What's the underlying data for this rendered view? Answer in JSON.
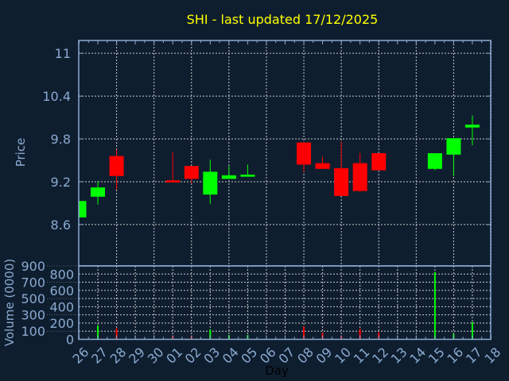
{
  "chart_data": {
    "type": "candlestick",
    "title": "SHI - last updated 17/12/2025",
    "xlabel": "Day",
    "ylabel": "Price",
    "volume_ylabel": "Volume (0000)",
    "x_tick_labels": [
      "26",
      "27",
      "28",
      "29",
      "30",
      "01",
      "02",
      "03",
      "04",
      "05",
      "06",
      "07",
      "08",
      "09",
      "10",
      "11",
      "12",
      "13",
      "14",
      "15",
      "16",
      "17",
      "18"
    ],
    "y_ticks": [
      8.6,
      9.2,
      9.8,
      10.4,
      11
    ],
    "y_tick_labels": [
      "8.6",
      "9.2",
      "9.8",
      "10.4",
      "11"
    ],
    "volume_ticks": [
      0,
      100,
      200,
      300,
      400,
      500,
      600,
      700,
      800,
      900
    ],
    "volume_tick_labels": [
      "0",
      "100",
      "200",
      "300",
      "400",
      "500",
      "600",
      "700",
      "800",
      "900"
    ],
    "ylim": [
      8.02,
      11.18
    ],
    "volume_ylim": [
      0,
      900
    ],
    "grid": true,
    "colors": {
      "up": "#00ff00",
      "down": "#ff0000",
      "background": "#0f1e2f",
      "axis": "#8aaad0",
      "title": "#ffff00",
      "grid": "#c8c8c8"
    },
    "candles": [
      {
        "day": "26",
        "open": 8.7,
        "high": 8.93,
        "low": 8.7,
        "close": 8.93,
        "volume": 0
      },
      {
        "day": "27",
        "open": 8.99,
        "high": 9.21,
        "low": 8.88,
        "close": 9.12,
        "volume": 169
      },
      {
        "day": "28",
        "open": 9.56,
        "high": 9.65,
        "low": 9.09,
        "close": 9.28,
        "volume": 136
      },
      {
        "day": "01",
        "open": 9.22,
        "high": 9.61,
        "low": 9.19,
        "close": 9.19,
        "volume": 45
      },
      {
        "day": "02",
        "open": 9.42,
        "high": 9.42,
        "low": 9.18,
        "close": 9.24,
        "volume": 39
      },
      {
        "day": "03",
        "open": 9.02,
        "high": 9.51,
        "low": 8.89,
        "close": 9.34,
        "volume": 120
      },
      {
        "day": "04",
        "open": 9.24,
        "high": 9.42,
        "low": 9.24,
        "close": 9.29,
        "volume": 52
      },
      {
        "day": "05",
        "open": 9.27,
        "high": 9.44,
        "low": 9.27,
        "close": 9.3,
        "volume": 52
      },
      {
        "day": "08",
        "open": 9.75,
        "high": 9.75,
        "low": 9.34,
        "close": 9.44,
        "volume": 156
      },
      {
        "day": "09",
        "open": 9.46,
        "high": 9.55,
        "low": 9.38,
        "close": 9.38,
        "volume": 78
      },
      {
        "day": "10",
        "open": 9.39,
        "high": 9.76,
        "low": 9.0,
        "close": 9.0,
        "volume": 39
      },
      {
        "day": "11",
        "open": 9.46,
        "high": 9.6,
        "low": 9.06,
        "close": 9.07,
        "volume": 127
      },
      {
        "day": "12",
        "open": 9.6,
        "high": 9.6,
        "low": 9.36,
        "close": 9.36,
        "volume": 84
      },
      {
        "day": "15",
        "open": 9.38,
        "high": 9.6,
        "low": 9.36,
        "close": 9.6,
        "volume": 825
      },
      {
        "day": "16",
        "open": 9.58,
        "high": 9.81,
        "low": 9.28,
        "close": 9.81,
        "volume": 65
      },
      {
        "day": "17",
        "open": 9.96,
        "high": 10.13,
        "low": 9.71,
        "close": 10.0,
        "volume": 211
      }
    ]
  }
}
